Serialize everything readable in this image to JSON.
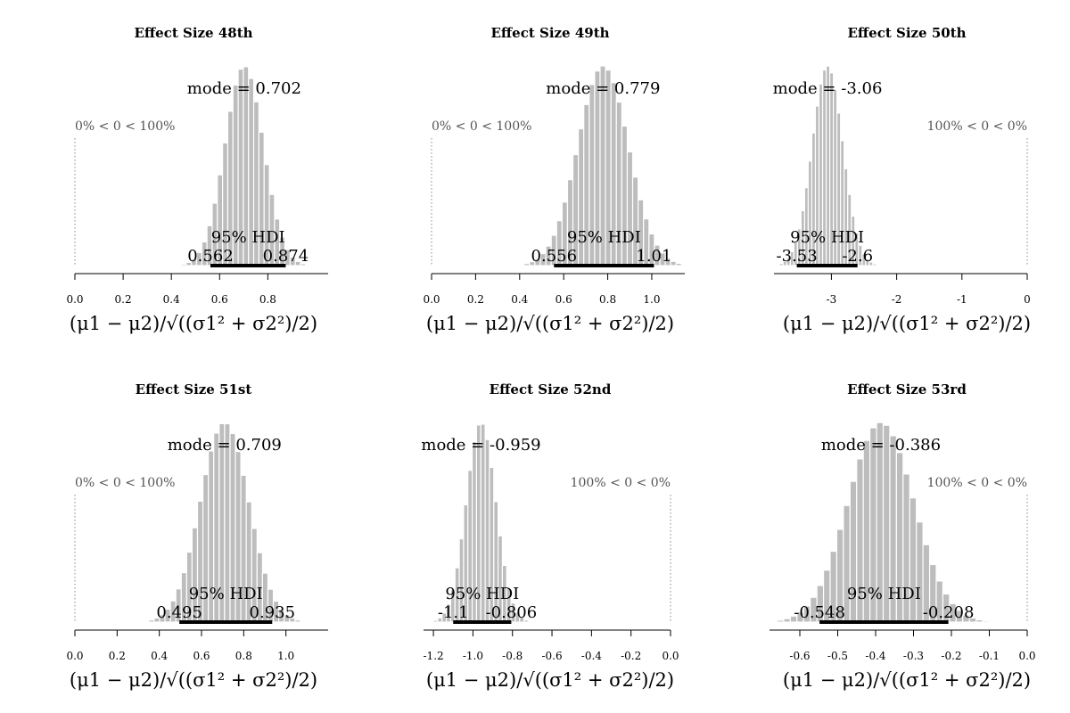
{
  "chart_data": [
    {
      "type": "histogram",
      "title": "Effect Size 48th",
      "xlabel": "(μ1 − μ2)/√((σ1² + σ2²)/2)",
      "xlim": [
        0.0,
        1.05
      ],
      "ticks": [
        0.0,
        0.2,
        0.4,
        0.6,
        0.8
      ],
      "tick_labels": [
        "0.0",
        "0.2",
        "0.4",
        "0.6",
        "0.8"
      ],
      "mode": 0.702,
      "sd": 0.08,
      "x_min": 0.44,
      "x_max": 1.0,
      "mode_label": "mode = 0.702",
      "compare_value": 0,
      "compare_label": "0% < 0 < 100%",
      "hdi_label": "95% HDI",
      "hdi": [
        0.562,
        0.874
      ],
      "hdi_labels": [
        "0.562",
        "0.874"
      ]
    },
    {
      "type": "histogram",
      "title": "Effect Size 49th",
      "xlabel": "(μ1 − μ2)/√((σ1² + σ2²)/2)",
      "xlim": [
        0.0,
        1.15
      ],
      "ticks": [
        0.0,
        0.2,
        0.4,
        0.6,
        0.8,
        1.0
      ],
      "tick_labels": [
        "0.0",
        "0.2",
        "0.4",
        "0.6",
        "0.8",
        "1.0"
      ],
      "mode": 0.779,
      "sd": 0.115,
      "x_min": 0.42,
      "x_max": 1.16,
      "mode_label": "mode = 0.779",
      "compare_value": 0,
      "compare_label": "0% < 0 < 100%",
      "hdi_label": "95% HDI",
      "hdi": [
        0.556,
        1.01
      ],
      "hdi_labels": [
        "0.556",
        "1.01"
      ]
    },
    {
      "type": "histogram",
      "title": "Effect Size 50th",
      "xlabel": "(μ1 − μ2)/√((σ1² + σ2²)/2)",
      "xlim": [
        -3.88,
        0.0
      ],
      "ticks": [
        -3,
        -2,
        -1,
        0
      ],
      "tick_labels": [
        "-3",
        "-2",
        "-1",
        "0"
      ],
      "mode": -3.06,
      "sd": 0.235,
      "x_min": -3.85,
      "x_max": -2.2,
      "mode_label": "mode = -3.06",
      "compare_value": 0,
      "compare_label": "100% < 0 < 0%",
      "hdi_label": "95% HDI",
      "hdi": [
        -3.53,
        -2.6
      ],
      "hdi_labels": [
        "-3.53",
        "-2.6"
      ]
    },
    {
      "type": "histogram",
      "title": "Effect Size 51st",
      "xlabel": "(μ1 − μ2)/√((σ1² + σ2²)/2)",
      "xlim": [
        0.0,
        1.2
      ],
      "ticks": [
        0.0,
        0.2,
        0.4,
        0.6,
        0.8,
        1.0
      ],
      "tick_labels": [
        "0.0",
        "0.2",
        "0.4",
        "0.6",
        "0.8",
        "1.0"
      ],
      "mode": 0.709,
      "sd": 0.115,
      "x_min": 0.35,
      "x_max": 1.12,
      "mode_label": "mode = 0.709",
      "compare_value": 0,
      "compare_label": "0% < 0 < 100%",
      "hdi_label": "95% HDI",
      "hdi": [
        0.495,
        0.935
      ],
      "hdi_labels": [
        "0.495",
        "0.935"
      ]
    },
    {
      "type": "histogram",
      "title": "Effect Size 52nd",
      "xlabel": "(μ1 − μ2)/√((σ1² + σ2²)/2)",
      "xlim": [
        -1.25,
        0.0
      ],
      "ticks": [
        -1.2,
        -1.0,
        -0.8,
        -0.6,
        -0.4,
        -0.2,
        0.0
      ],
      "tick_labels": [
        "-1.2",
        "-1.0",
        "-0.8",
        "-0.6",
        "-0.4",
        "-0.2",
        "0.0"
      ],
      "mode": -0.959,
      "sd": 0.075,
      "x_min": -1.2,
      "x_max": -0.72,
      "mode_label": "mode = -0.959",
      "compare_value": 0,
      "compare_label": "100% < 0 < 0%",
      "hdi_label": "95% HDI",
      "hdi": [
        -1.1,
        -0.806
      ],
      "hdi_labels": [
        "-1.1",
        "-0.806"
      ]
    },
    {
      "type": "histogram",
      "title": "Effect Size 53rd",
      "xlabel": "(μ1 − μ2)/√((σ1² + σ2²)/2)",
      "xlim": [
        -0.68,
        0.0
      ],
      "ticks": [
        -0.6,
        -0.5,
        -0.4,
        -0.3,
        -0.2,
        -0.1,
        0.0
      ],
      "tick_labels": [
        "-0.6",
        "-0.5",
        "-0.4",
        "-0.3",
        "-0.2",
        "-0.1",
        "0.0"
      ],
      "mode": -0.386,
      "sd": 0.087,
      "x_min": -0.66,
      "x_max": -0.1,
      "mode_label": "mode = -0.386",
      "compare_value": 0,
      "compare_label": "100% < 0 < 0%",
      "hdi_label": "95% HDI",
      "hdi": [
        -0.548,
        -0.208
      ],
      "hdi_labels": [
        "-0.548",
        "-0.208"
      ]
    }
  ]
}
